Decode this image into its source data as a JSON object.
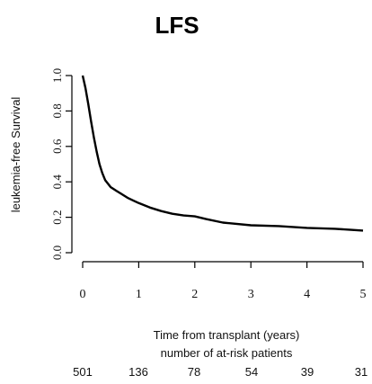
{
  "chart_data": {
    "type": "line",
    "title": "LFS",
    "xlabel": "Time from transplant (years)",
    "ylabel": "leukemia-free Survival",
    "xlim": [
      0,
      5
    ],
    "ylim": [
      0,
      1
    ],
    "x_ticks": [
      "0",
      "1",
      "2",
      "3",
      "4",
      "5"
    ],
    "y_ticks": [
      "0.0",
      "0.2",
      "0.4",
      "0.6",
      "0.8",
      "1.0"
    ],
    "grid": false,
    "series": [
      {
        "x": [
          0,
          0.05,
          0.1,
          0.15,
          0.2,
          0.25,
          0.3,
          0.35,
          0.4,
          0.5,
          0.6,
          0.7,
          0.8,
          0.9,
          1.0,
          1.2,
          1.4,
          1.6,
          1.8,
          2.0,
          2.2,
          2.5,
          3.0,
          3.5,
          4.0,
          4.5,
          5.0
        ],
        "y": [
          1.0,
          0.93,
          0.84,
          0.74,
          0.65,
          0.57,
          0.5,
          0.45,
          0.41,
          0.37,
          0.35,
          0.33,
          0.31,
          0.295,
          0.28,
          0.255,
          0.235,
          0.22,
          0.21,
          0.205,
          0.19,
          0.17,
          0.155,
          0.15,
          0.14,
          0.135,
          0.125
        ]
      }
    ],
    "risk_table": {
      "title": "number of at-risk patients",
      "counts": [
        "501",
        "136",
        "78",
        "54",
        "39",
        "31"
      ]
    }
  }
}
